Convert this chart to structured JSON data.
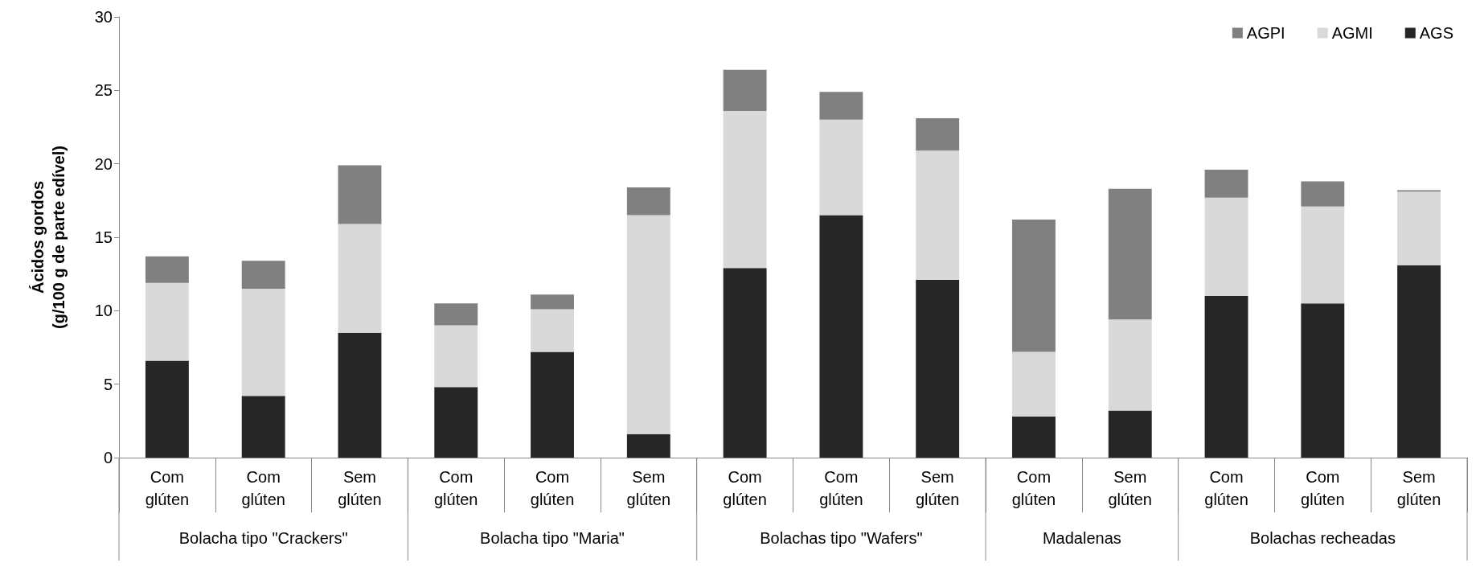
{
  "chart_data": {
    "type": "bar",
    "stacked": true,
    "ylabel": "Ácidos gordos\n(g/100 g de parte edível)",
    "categories": [
      "Com glúten",
      "Com glúten",
      "Sem glúten",
      "Com glúten",
      "Com glúten",
      "Sem glúten",
      "Com glúten",
      "Com glúten",
      "Sem glúten",
      "Com glúten",
      "Sem glúten",
      "Com glúten",
      "Com glúten",
      "Sem glúten"
    ],
    "annotations": [
      "Bolacha tipo \"Crackers\"",
      "Bolacha tipo \"Maria\"",
      "Bolachas tipo \"Wafers\"",
      "Madalenas",
      "Bolachas recheadas"
    ],
    "series": [
      {
        "name": "AGS",
        "color": "#262626",
        "values": [
          6.6,
          4.2,
          8.5,
          4.8,
          7.2,
          1.6,
          12.9,
          16.5,
          12.1,
          2.8,
          3.2,
          11.0,
          10.5,
          13.1
        ]
      },
      {
        "name": "AGMI",
        "color": "#d9d9d9",
        "values": [
          5.3,
          7.3,
          7.4,
          4.2,
          2.9,
          14.9,
          10.7,
          6.5,
          8.8,
          4.4,
          6.2,
          6.7,
          6.6,
          5.0
        ]
      },
      {
        "name": "AGPI",
        "color": "#808080",
        "values": [
          1.8,
          1.9,
          4.0,
          1.5,
          1.0,
          1.9,
          2.8,
          1.9,
          2.2,
          9.0,
          8.9,
          1.9,
          1.7,
          0.1
        ]
      }
    ],
    "ylim": [
      0,
      30
    ],
    "yticks": [
      0,
      5,
      10,
      15,
      20,
      25,
      30
    ],
    "grid": false,
    "legend": "top right"
  }
}
